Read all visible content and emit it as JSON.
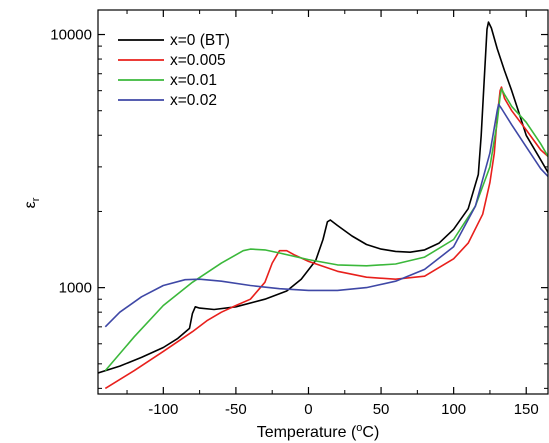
{
  "chart_data": {
    "type": "line",
    "xlabel": "Temperature (°C)",
    "ylabel": "εr",
    "xlim": [
      -145,
      165
    ],
    "ylim": [
      380,
      12500
    ],
    "yscale": "log",
    "x_ticks": [
      -100,
      -50,
      0,
      50,
      100,
      150
    ],
    "x_tick_labels": [
      "-100",
      "-50",
      "0",
      "50",
      "100",
      "150"
    ],
    "y_ticks": [
      1000,
      10000
    ],
    "y_tick_labels": [
      "1000",
      "10000"
    ],
    "grid": false,
    "legend_position": "top-left",
    "series": [
      {
        "name": "x=0 (BT)",
        "color": "#000000",
        "points": [
          [
            -145,
            460
          ],
          [
            -130,
            490
          ],
          [
            -115,
            530
          ],
          [
            -100,
            580
          ],
          [
            -90,
            630
          ],
          [
            -82,
            690
          ],
          [
            -80,
            790
          ],
          [
            -78,
            840
          ],
          [
            -75,
            830
          ],
          [
            -65,
            820
          ],
          [
            -50,
            840
          ],
          [
            -30,
            900
          ],
          [
            -15,
            970
          ],
          [
            -5,
            1080
          ],
          [
            5,
            1280
          ],
          [
            10,
            1550
          ],
          [
            13,
            1820
          ],
          [
            15,
            1850
          ],
          [
            20,
            1760
          ],
          [
            30,
            1600
          ],
          [
            40,
            1480
          ],
          [
            50,
            1420
          ],
          [
            60,
            1390
          ],
          [
            70,
            1380
          ],
          [
            80,
            1410
          ],
          [
            90,
            1500
          ],
          [
            100,
            1700
          ],
          [
            110,
            2050
          ],
          [
            117,
            2800
          ],
          [
            119,
            4000
          ],
          [
            121,
            6500
          ],
          [
            123,
            10500
          ],
          [
            124,
            11200
          ],
          [
            126,
            10600
          ],
          [
            130,
            8800
          ],
          [
            135,
            7200
          ],
          [
            140,
            6000
          ],
          [
            145,
            4900
          ],
          [
            150,
            4000
          ],
          [
            160,
            3200
          ],
          [
            165,
            2850
          ]
        ]
      },
      {
        "name": "x=0.005",
        "color": "#e8201c",
        "points": [
          [
            -140,
            400
          ],
          [
            -120,
            470
          ],
          [
            -100,
            560
          ],
          [
            -80,
            670
          ],
          [
            -70,
            740
          ],
          [
            -60,
            800
          ],
          [
            -50,
            850
          ],
          [
            -40,
            900
          ],
          [
            -30,
            1050
          ],
          [
            -25,
            1250
          ],
          [
            -20,
            1400
          ],
          [
            -15,
            1400
          ],
          [
            -10,
            1350
          ],
          [
            0,
            1270
          ],
          [
            20,
            1160
          ],
          [
            40,
            1100
          ],
          [
            60,
            1080
          ],
          [
            80,
            1110
          ],
          [
            100,
            1300
          ],
          [
            110,
            1500
          ],
          [
            120,
            1950
          ],
          [
            125,
            2600
          ],
          [
            128,
            3400
          ],
          [
            130,
            4700
          ],
          [
            132,
            6000
          ],
          [
            133,
            6200
          ],
          [
            135,
            5600
          ],
          [
            140,
            5000
          ],
          [
            150,
            4200
          ],
          [
            160,
            3500
          ],
          [
            165,
            3300
          ]
        ]
      },
      {
        "name": "x=0.01",
        "color": "#3bb83b",
        "points": [
          [
            -140,
            470
          ],
          [
            -120,
            640
          ],
          [
            -100,
            850
          ],
          [
            -80,
            1050
          ],
          [
            -60,
            1250
          ],
          [
            -45,
            1400
          ],
          [
            -40,
            1420
          ],
          [
            -30,
            1410
          ],
          [
            -20,
            1370
          ],
          [
            0,
            1290
          ],
          [
            20,
            1230
          ],
          [
            40,
            1220
          ],
          [
            60,
            1240
          ],
          [
            80,
            1320
          ],
          [
            100,
            1550
          ],
          [
            115,
            2100
          ],
          [
            125,
            3000
          ],
          [
            130,
            4500
          ],
          [
            132,
            5700
          ],
          [
            133,
            6100
          ],
          [
            135,
            5800
          ],
          [
            140,
            5200
          ],
          [
            150,
            4500
          ],
          [
            160,
            3700
          ],
          [
            165,
            3300
          ]
        ]
      },
      {
        "name": "x=0.02",
        "color": "#3f48a6",
        "points": [
          [
            -140,
            700
          ],
          [
            -130,
            800
          ],
          [
            -115,
            920
          ],
          [
            -100,
            1020
          ],
          [
            -85,
            1075
          ],
          [
            -75,
            1080
          ],
          [
            -60,
            1060
          ],
          [
            -40,
            1020
          ],
          [
            -20,
            990
          ],
          [
            0,
            975
          ],
          [
            20,
            975
          ],
          [
            40,
            1000
          ],
          [
            60,
            1060
          ],
          [
            80,
            1180
          ],
          [
            100,
            1450
          ],
          [
            115,
            2100
          ],
          [
            125,
            3400
          ],
          [
            130,
            5000
          ],
          [
            131,
            5300
          ],
          [
            133,
            5100
          ],
          [
            140,
            4400
          ],
          [
            150,
            3600
          ],
          [
            160,
            2950
          ],
          [
            165,
            2750
          ]
        ]
      }
    ]
  }
}
